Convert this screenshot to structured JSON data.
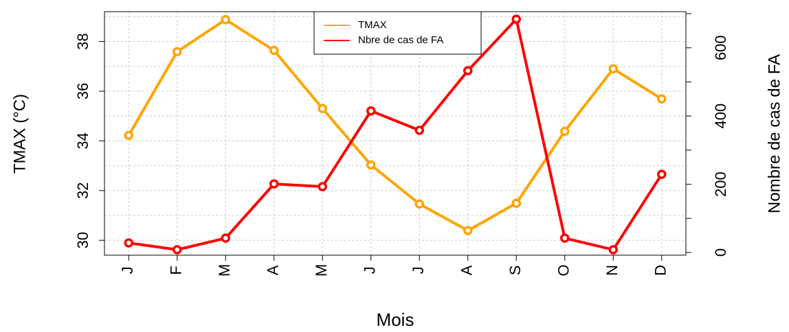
{
  "chart_data": {
    "type": "line",
    "xlabel": "Mois",
    "ylabel": "TMAX (°C)",
    "y2label": "Nombre de cas de FA",
    "categories": [
      "J",
      "F",
      "M",
      "A",
      "M",
      "J",
      "J",
      "A",
      "S",
      "O",
      "N",
      "D"
    ],
    "series": [
      {
        "name": "TMAX",
        "color": "#ffa500",
        "axis": "y",
        "values": [
          34.22,
          37.59,
          38.88,
          37.64,
          35.3,
          33.03,
          31.46,
          30.39,
          31.49,
          34.39,
          36.9,
          35.69
        ]
      },
      {
        "name": "Nbre de cas de FA",
        "color": "#ff0000",
        "axis": "y2",
        "values": [
          28,
          8,
          42,
          201,
          193,
          415,
          358,
          533,
          684,
          42,
          8,
          229
        ]
      }
    ],
    "ylim": [
      29.4,
      39.2
    ],
    "yticks": [
      30,
      32,
      34,
      36,
      38
    ],
    "ygrid": [
      30,
      31,
      32,
      33,
      34,
      35,
      36,
      37,
      38,
      39
    ],
    "y2lim": [
      -8,
      706
    ],
    "y2ticks": [
      0,
      200,
      400,
      600
    ],
    "y2minor_ticks": [
      100,
      300,
      500,
      700
    ],
    "grid": true,
    "legend": "top"
  }
}
